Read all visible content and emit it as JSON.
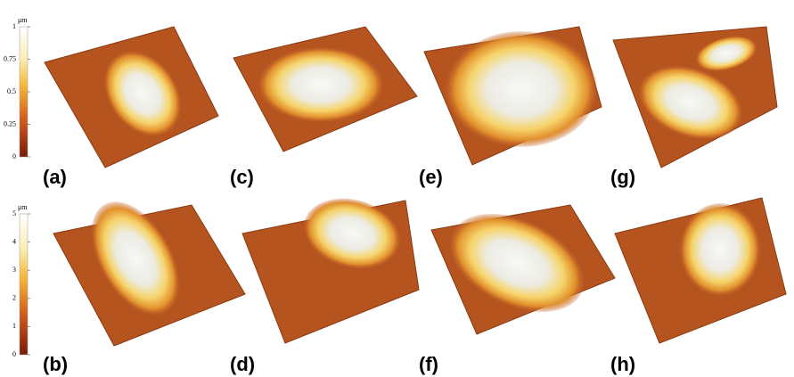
{
  "colorbars": [
    {
      "unit": "μm",
      "lim": [
        0,
        1
      ],
      "ticks": [
        0,
        0.25,
        0.5,
        0.75,
        1
      ]
    },
    {
      "unit": "μm",
      "lim": [
        0,
        5
      ],
      "ticks": [
        0,
        1,
        2,
        3,
        4,
        5
      ]
    }
  ],
  "panels": {
    "top": [
      "(a)",
      "(c)",
      "(e)",
      "(g)"
    ],
    "bottom": [
      "(b)",
      "(d)",
      "(f)",
      "(h)"
    ]
  }
}
